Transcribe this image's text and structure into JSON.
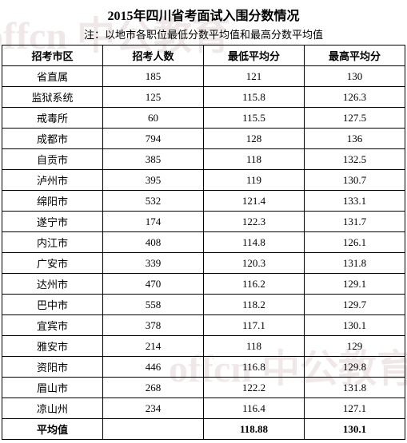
{
  "title": "2015年四川省考面试入围分数情况",
  "subtitle": "注：以地市各职位最低分数平均值和最高分数平均值",
  "watermark_text": "offcn 中公教育",
  "colors": {
    "border": "#000000",
    "background": "#ffffff",
    "watermark": "#f0e8e8",
    "text": "#000000"
  },
  "font": {
    "title_size": 16,
    "header_size": 13,
    "cell_size": 13,
    "family": "SimSun"
  },
  "columns": [
    "招考市区",
    "招考人数",
    "最低平均分",
    "最高平均分"
  ],
  "rows": [
    [
      "省直属",
      "185",
      "121",
      "130"
    ],
    [
      "监狱系统",
      "125",
      "115.8",
      "126.3"
    ],
    [
      "戒毒所",
      "60",
      "115.5",
      "127.5"
    ],
    [
      "成都市",
      "794",
      "128",
      "136"
    ],
    [
      "自贡市",
      "385",
      "118",
      "132.5"
    ],
    [
      "泸州市",
      "395",
      "119",
      "130.7"
    ],
    [
      "绵阳市",
      "532",
      "121.4",
      "133.1"
    ],
    [
      "遂宁市",
      "174",
      "122.3",
      "131.7"
    ],
    [
      "内江市",
      "408",
      "114.8",
      "126.1"
    ],
    [
      "广安市",
      "339",
      "120.3",
      "131.8"
    ],
    [
      "达州市",
      "470",
      "116.2",
      "129.1"
    ],
    [
      "巴中市",
      "558",
      "118.2",
      "129.7"
    ],
    [
      "宜宾市",
      "378",
      "117.1",
      "130.1"
    ],
    [
      "雅安市",
      "214",
      "118",
      "129"
    ],
    [
      "资阳市",
      "446",
      "116.8",
      "129.8"
    ],
    [
      "眉山市",
      "268",
      "122.2",
      "131.8"
    ],
    [
      "凉山州",
      "234",
      "116.4",
      "127.1"
    ]
  ],
  "avg_row": [
    "平均值",
    "",
    "118.88",
    "130.1"
  ]
}
